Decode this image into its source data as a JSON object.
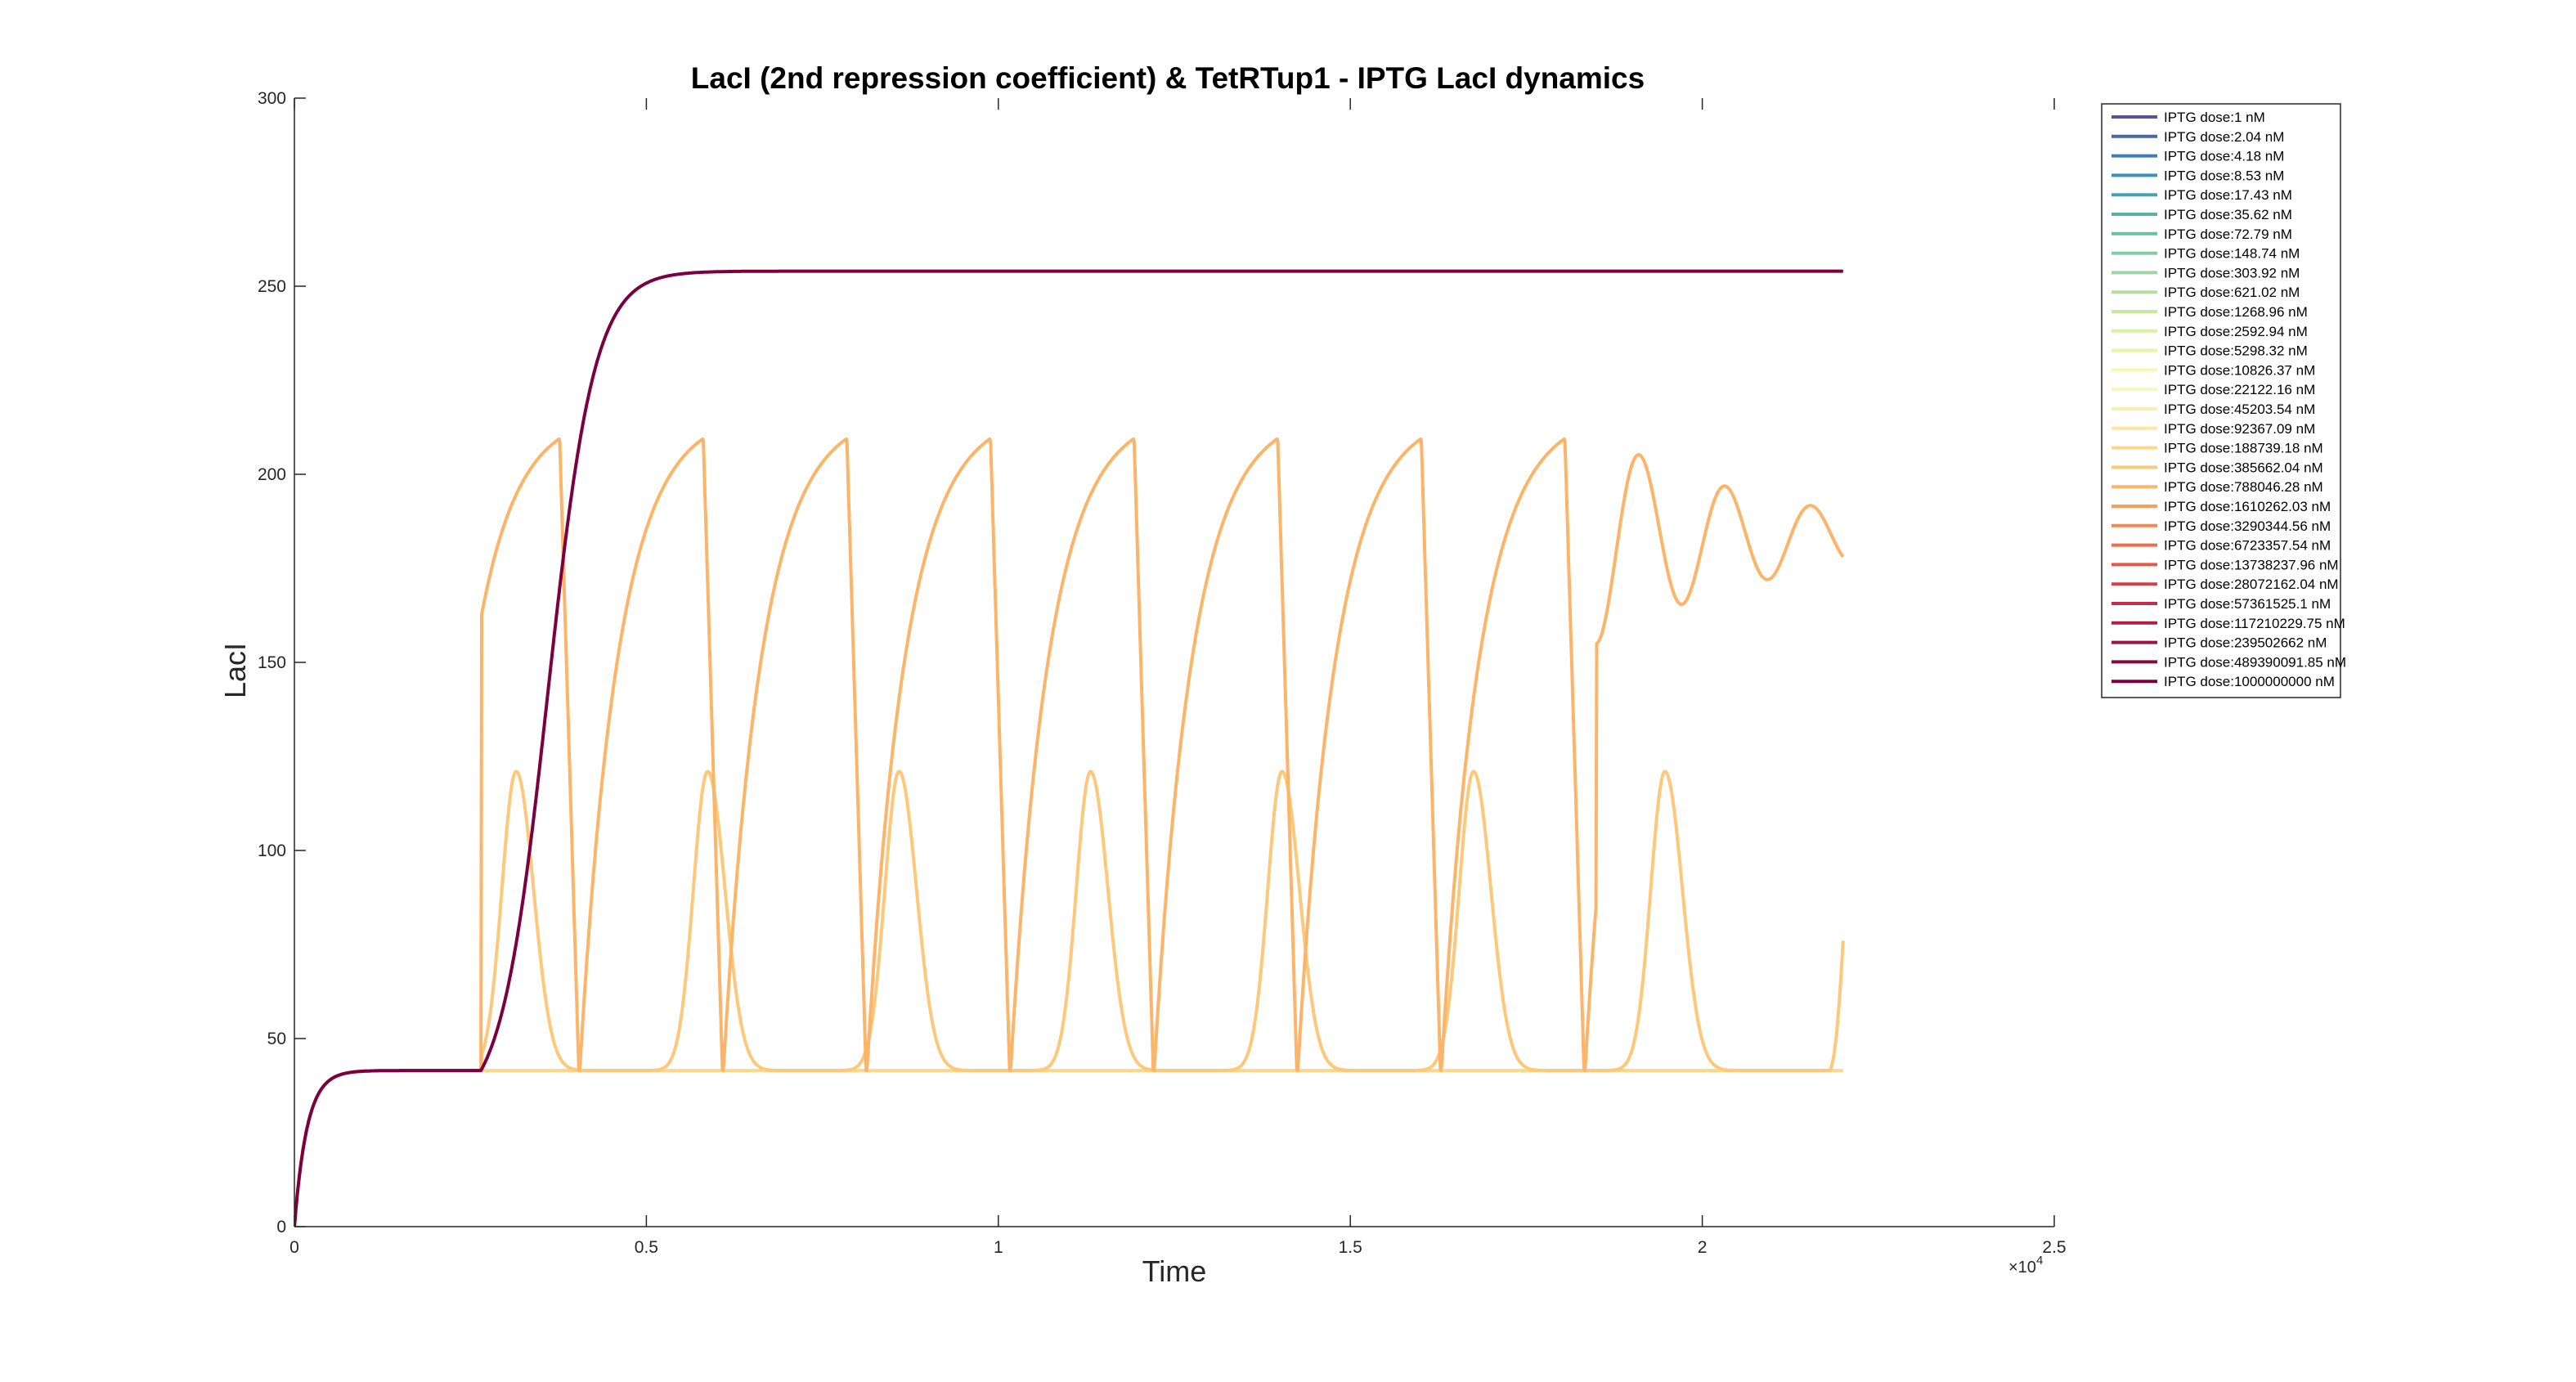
{
  "chart_data": {
    "type": "line",
    "title": "LacI (2nd repression coefficient) & TetRTup1 - IPTG LacI dynamics",
    "xlabel": "Time",
    "ylabel": "LacI",
    "xlim": [
      0,
      25000
    ],
    "ylim": [
      0,
      300
    ],
    "x_exponent_label": "×10",
    "x_exponent_power": "4",
    "xtick_values": [
      0,
      5000,
      10000,
      15000,
      20000,
      25000
    ],
    "xtick_labels": [
      "0",
      "0.5",
      "1",
      "1.5",
      "2",
      "2.5"
    ],
    "ytick_values": [
      0,
      50,
      100,
      150,
      200,
      250,
      300
    ],
    "ytick_labels": [
      "0",
      "50",
      "100",
      "150",
      "200",
      "250",
      "300"
    ],
    "grid": false,
    "legend_position": "top-right",
    "series": [
      {
        "name": "IPTG dose:1 nM",
        "color": "#5e4fa2",
        "shape": "none"
      },
      {
        "name": "IPTG dose:2.04 nM",
        "color": "#4a66ad",
        "shape": "none"
      },
      {
        "name": "IPTG dose:4.18 nM",
        "color": "#3f7db8",
        "shape": "none"
      },
      {
        "name": "IPTG dose:8.53 nM",
        "color": "#3a90b8",
        "shape": "none"
      },
      {
        "name": "IPTG dose:17.43 nM",
        "color": "#45a2ad",
        "shape": "none"
      },
      {
        "name": "IPTG dose:35.62 nM",
        "color": "#57b2a4",
        "shape": "none"
      },
      {
        "name": "IPTG dose:72.79 nM",
        "color": "#6cbfa4",
        "shape": "none"
      },
      {
        "name": "IPTG dose:148.74 nM",
        "color": "#84cba5",
        "shape": "none"
      },
      {
        "name": "IPTG dose:303.92 nM",
        "color": "#9dd5a4",
        "shape": "none"
      },
      {
        "name": "IPTG dose:621.02 nM",
        "color": "#b3df9e",
        "shape": "none"
      },
      {
        "name": "IPTG dose:1268.96 nM",
        "color": "#c9e99e",
        "shape": "none"
      },
      {
        "name": "IPTG dose:2592.94 nM",
        "color": "#daf0a0",
        "shape": "none"
      },
      {
        "name": "IPTG dose:5298.32 nM",
        "color": "#e8f5a4",
        "shape": "none"
      },
      {
        "name": "IPTG dose:10826.37 nM",
        "color": "#f2f9b0",
        "shape": "none"
      },
      {
        "name": "IPTG dose:22122.16 nM",
        "color": "#f8f6b8",
        "shape": "none"
      },
      {
        "name": "IPTG dose:45203.54 nM",
        "color": "#fbefb0",
        "shape": "none"
      },
      {
        "name": "IPTG dose:92367.09 nM",
        "color": "#fde5a2",
        "shape": "none"
      },
      {
        "name": "IPTG dose:188739.18 nM",
        "color": "#fdd68c",
        "shape": "flat"
      },
      {
        "name": "IPTG dose:385662.04 nM",
        "color": "#fdc87a",
        "shape": "fast",
        "base": 41.5,
        "peak": 121,
        "period": 2720,
        "first_peak": 3150,
        "pulse_width": 450,
        "tail_to": 22000,
        "tail_value": 76
      },
      {
        "name": "IPTG dose:788046.28 nM",
        "color": "#fcb468",
        "shape": "slow",
        "base": 41.5,
        "peak": 209.5,
        "period": 2040,
        "first_peak": 3850,
        "damped_from": 18500,
        "final_value": 187
      },
      {
        "name": "IPTG dose:1610262.03 nM",
        "color": "#f99f5a",
        "shape": "none"
      },
      {
        "name": "IPTG dose:3290344.56 nM",
        "color": "#f5874f",
        "shape": "none"
      },
      {
        "name": "IPTG dose:6723357.54 nM",
        "color": "#ef6e4a",
        "shape": "none"
      },
      {
        "name": "IPTG dose:13738237.96 nM",
        "color": "#e65748",
        "shape": "none"
      },
      {
        "name": "IPTG dose:28072162.04 nM",
        "color": "#d6404b",
        "shape": "none"
      },
      {
        "name": "IPTG dose:57361525.1 nM",
        "color": "#c42c4c",
        "shape": "none"
      },
      {
        "name": "IPTG dose:117210229.75 nM",
        "color": "#b01e4a",
        "shape": "none"
      },
      {
        "name": "IPTG dose:239502662 nM",
        "color": "#9b1446",
        "shape": "none"
      },
      {
        "name": "IPTG dose:489390091.85 nM",
        "color": "#880a42",
        "shape": "none"
      },
      {
        "name": "IPTG dose:1000000000 nM",
        "color": "#7a0040",
        "shape": "saturating",
        "base": 41.5,
        "rise_start": 2650,
        "plateau": 254
      }
    ],
    "shared": {
      "initial_rise_tau": 180,
      "baseline": 41.5,
      "induction_time": 2650,
      "end_time": 22000
    }
  }
}
